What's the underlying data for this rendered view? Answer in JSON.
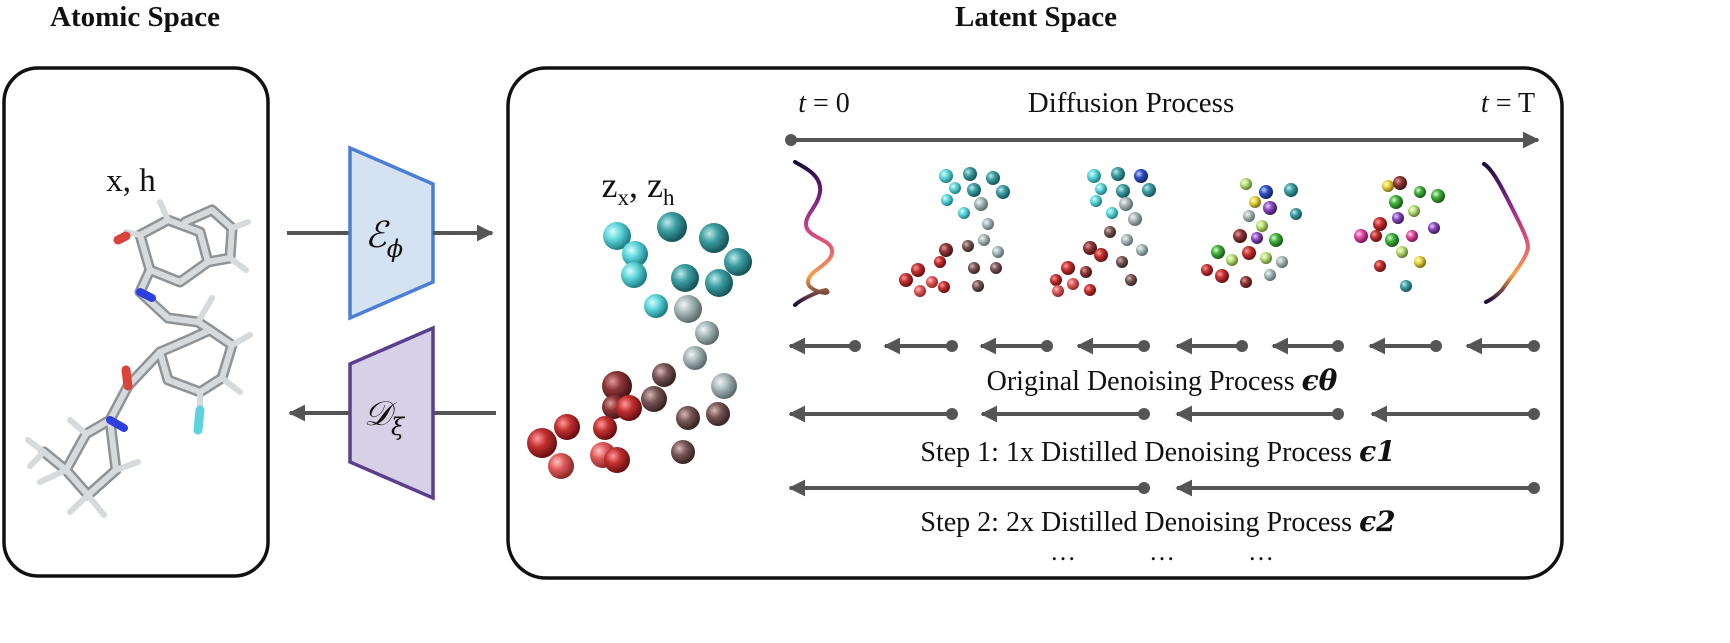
{
  "headers": {
    "atomic": "Atomic Space",
    "latent": "Latent Space"
  },
  "atomic_panel": {
    "label": "x, h"
  },
  "encoder": {
    "label": "ℰ",
    "subscript": "ϕ"
  },
  "decoder": {
    "label": "𝒟",
    "subscript": "ξ"
  },
  "latent_panel": {
    "label_base": "z",
    "sub_x": "x",
    "sub_h": "h",
    "t_start": "t = 0",
    "t_end": "t = T",
    "diffusion_label": "Diffusion Process",
    "original_label": "Original Denoising Process",
    "original_symbol": "ϵθ",
    "step1_label": "Step 1: 1x Distilled Denoising Process",
    "step1_symbol": "ϵ1",
    "step2_label": "Step 2: 2x Distilled Denoising Process",
    "step2_symbol": "ϵ2",
    "ellipsis": "…"
  },
  "colors": {
    "panel_border": "#111111",
    "arrow": "#555555",
    "encoder_fill": "#d4e2f1",
    "encoder_stroke": "#4a7fd4",
    "decoder_fill": "#d7d0e6",
    "decoder_stroke": "#5a3f8f",
    "cyan_sphere": "#4fd4d8",
    "teal_sphere": "#2f8f95",
    "red_sphere": "#b2282b",
    "brown_sphere": "#6e4f4f"
  }
}
